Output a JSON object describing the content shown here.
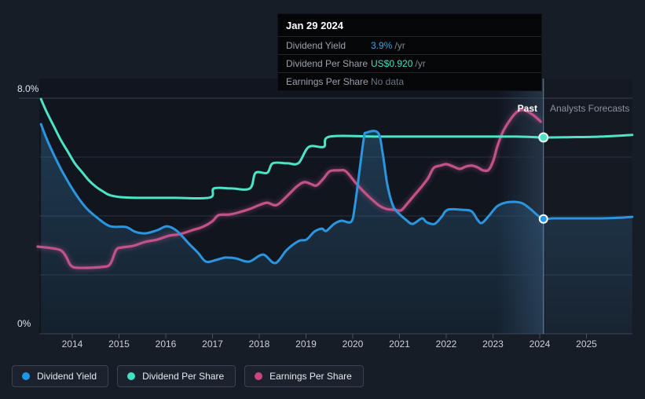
{
  "tooltip": {
    "date": "Jan 29 2024",
    "rows": [
      {
        "label": "Dividend Yield",
        "value": "3.9%",
        "suffix": "/yr",
        "value_color": "#2da8e8"
      },
      {
        "label": "Dividend Per Share",
        "value": "US$0.920",
        "suffix": "/yr",
        "value_color": "#45e0c5"
      },
      {
        "label": "Earnings Per Share",
        "value": "No data",
        "suffix": "",
        "value_color": "#6b7480"
      }
    ]
  },
  "labels": {
    "past": "Past",
    "forecast": "Analysts Forecasts"
  },
  "y_axis": {
    "top": "8.0%",
    "bottom": "0%"
  },
  "x_years": [
    "2014",
    "2015",
    "2016",
    "2017",
    "2018",
    "2019",
    "2020",
    "2021",
    "2022",
    "2023",
    "2024",
    "2025"
  ],
  "legend": [
    {
      "label": "Dividend Yield",
      "color": "#1e96e8"
    },
    {
      "label": "Dividend Per Share",
      "color": "#41e0c0"
    },
    {
      "label": "Earnings Per Share",
      "color": "#c9477e"
    }
  ],
  "colors": {
    "yield_line": "#2b95e0",
    "dps_line": "#4de3c6",
    "eps_line": "#c2528a",
    "grid": "#2a3240",
    "grid_top": "#3a4350",
    "axis": "#3a4250",
    "divider": "#a9c6e4",
    "plot_bg": "#10151e"
  },
  "chart_data": {
    "type": "line",
    "title": "",
    "x_range_years": [
      2013.26,
      2025.98
    ],
    "divider_year": 2024.08,
    "divider_label_left": "Past",
    "divider_label_right": "Analysts Forecasts",
    "y_axis": {
      "min": 0,
      "max": 8,
      "unit": "%",
      "tick_labels": [
        "8.0%",
        "0%"
      ],
      "gridline_step": 2
    },
    "grid": true,
    "legend_position": "bottom",
    "series": [
      {
        "name": "Dividend Yield",
        "unit": "%",
        "axis_top_value": 8,
        "color": "#2b95e0",
        "area_fill": true,
        "marker_at_divider": 3.9,
        "points": [
          [
            2013.33,
            7.12
          ],
          [
            2013.46,
            6.59
          ],
          [
            2013.63,
            6.0
          ],
          [
            2013.8,
            5.47
          ],
          [
            2014.05,
            4.8
          ],
          [
            2014.3,
            4.27
          ],
          [
            2014.55,
            3.92
          ],
          [
            2014.81,
            3.65
          ],
          [
            2015.14,
            3.63
          ],
          [
            2015.34,
            3.47
          ],
          [
            2015.56,
            3.41
          ],
          [
            2015.82,
            3.52
          ],
          [
            2016.03,
            3.65
          ],
          [
            2016.24,
            3.49
          ],
          [
            2016.49,
            3.07
          ],
          [
            2016.69,
            2.75
          ],
          [
            2016.86,
            2.45
          ],
          [
            2017.08,
            2.51
          ],
          [
            2017.28,
            2.59
          ],
          [
            2017.5,
            2.56
          ],
          [
            2017.78,
            2.45
          ],
          [
            2018.08,
            2.69
          ],
          [
            2018.34,
            2.4
          ],
          [
            2018.59,
            2.85
          ],
          [
            2018.84,
            3.15
          ],
          [
            2019.01,
            3.2
          ],
          [
            2019.18,
            3.47
          ],
          [
            2019.34,
            3.57
          ],
          [
            2019.43,
            3.49
          ],
          [
            2019.6,
            3.73
          ],
          [
            2019.76,
            3.84
          ],
          [
            2019.97,
            3.81
          ],
          [
            2020.05,
            4.4
          ],
          [
            2020.15,
            5.6
          ],
          [
            2020.24,
            6.67
          ],
          [
            2020.29,
            6.83
          ],
          [
            2020.54,
            6.83
          ],
          [
            2020.64,
            6.13
          ],
          [
            2020.74,
            5.07
          ],
          [
            2020.86,
            4.35
          ],
          [
            2020.99,
            4.08
          ],
          [
            2021.14,
            3.87
          ],
          [
            2021.28,
            3.73
          ],
          [
            2021.48,
            3.92
          ],
          [
            2021.58,
            3.79
          ],
          [
            2021.75,
            3.73
          ],
          [
            2021.9,
            3.97
          ],
          [
            2022.03,
            4.21
          ],
          [
            2022.34,
            4.21
          ],
          [
            2022.54,
            4.16
          ],
          [
            2022.67,
            3.87
          ],
          [
            2022.76,
            3.76
          ],
          [
            2022.91,
            4.0
          ],
          [
            2023.08,
            4.32
          ],
          [
            2023.26,
            4.45
          ],
          [
            2023.46,
            4.48
          ],
          [
            2023.63,
            4.43
          ],
          [
            2023.8,
            4.24
          ],
          [
            2023.95,
            4.03
          ],
          [
            2024.08,
            3.9
          ],
          [
            2024.3,
            3.92
          ],
          [
            2024.8,
            3.92
          ],
          [
            2025.3,
            3.92
          ],
          [
            2025.7,
            3.94
          ],
          [
            2025.98,
            3.97
          ]
        ]
      },
      {
        "name": "Dividend Per Share",
        "unit": "US$",
        "axis_top_value": 1.104,
        "color": "#4de3c6",
        "area_fill": false,
        "marker_at_divider": 0.92,
        "points": [
          [
            2013.33,
            1.1
          ],
          [
            2013.45,
            1.04
          ],
          [
            2013.6,
            0.975
          ],
          [
            2013.75,
            0.91
          ],
          [
            2013.9,
            0.855
          ],
          [
            2014.05,
            0.8
          ],
          [
            2014.2,
            0.76
          ],
          [
            2014.35,
            0.72
          ],
          [
            2014.5,
            0.69
          ],
          [
            2014.65,
            0.668
          ],
          [
            2014.8,
            0.65
          ],
          [
            2015.06,
            0.64
          ],
          [
            2015.5,
            0.637
          ],
          [
            2016.2,
            0.637
          ],
          [
            2016.94,
            0.638
          ],
          [
            2017.03,
            0.681
          ],
          [
            2017.4,
            0.681
          ],
          [
            2017.8,
            0.681
          ],
          [
            2017.92,
            0.754
          ],
          [
            2018.17,
            0.754
          ],
          [
            2018.29,
            0.799
          ],
          [
            2018.6,
            0.799
          ],
          [
            2018.84,
            0.8
          ],
          [
            2019.06,
            0.876
          ],
          [
            2019.38,
            0.876
          ],
          [
            2019.51,
            0.924
          ],
          [
            2020.5,
            0.924
          ],
          [
            2021.5,
            0.924
          ],
          [
            2022.5,
            0.924
          ],
          [
            2023.5,
            0.924
          ],
          [
            2024.08,
            0.92
          ],
          [
            2024.6,
            0.921
          ],
          [
            2025.3,
            0.924
          ],
          [
            2025.98,
            0.932
          ]
        ]
      },
      {
        "name": "Earnings Per Share",
        "unit": "axis-%",
        "axis_top_value": 8,
        "color": "#c2528a",
        "area_fill": false,
        "ends_before_forecast": true,
        "points": [
          [
            2013.26,
            2.96
          ],
          [
            2013.55,
            2.91
          ],
          [
            2013.76,
            2.83
          ],
          [
            2013.87,
            2.61
          ],
          [
            2013.97,
            2.32
          ],
          [
            2014.13,
            2.24
          ],
          [
            2014.64,
            2.27
          ],
          [
            2014.81,
            2.37
          ],
          [
            2014.94,
            2.85
          ],
          [
            2015.06,
            2.93
          ],
          [
            2015.31,
            2.99
          ],
          [
            2015.56,
            3.12
          ],
          [
            2015.82,
            3.2
          ],
          [
            2016.07,
            3.33
          ],
          [
            2016.32,
            3.39
          ],
          [
            2016.57,
            3.52
          ],
          [
            2016.79,
            3.63
          ],
          [
            2016.99,
            3.81
          ],
          [
            2017.13,
            4.03
          ],
          [
            2017.36,
            4.05
          ],
          [
            2017.58,
            4.13
          ],
          [
            2017.8,
            4.24
          ],
          [
            2018.0,
            4.37
          ],
          [
            2018.17,
            4.45
          ],
          [
            2018.37,
            4.37
          ],
          [
            2018.59,
            4.67
          ],
          [
            2018.81,
            5.01
          ],
          [
            2018.97,
            5.15
          ],
          [
            2019.13,
            5.07
          ],
          [
            2019.23,
            5.04
          ],
          [
            2019.38,
            5.28
          ],
          [
            2019.51,
            5.52
          ],
          [
            2019.71,
            5.55
          ],
          [
            2019.85,
            5.52
          ],
          [
            2020.05,
            5.15
          ],
          [
            2020.22,
            4.85
          ],
          [
            2020.39,
            4.59
          ],
          [
            2020.57,
            4.35
          ],
          [
            2020.72,
            4.24
          ],
          [
            2020.89,
            4.21
          ],
          [
            2021.03,
            4.19
          ],
          [
            2021.14,
            4.37
          ],
          [
            2021.31,
            4.69
          ],
          [
            2021.48,
            5.01
          ],
          [
            2021.61,
            5.28
          ],
          [
            2021.73,
            5.63
          ],
          [
            2021.87,
            5.71
          ],
          [
            2022.0,
            5.76
          ],
          [
            2022.15,
            5.68
          ],
          [
            2022.29,
            5.6
          ],
          [
            2022.42,
            5.68
          ],
          [
            2022.55,
            5.71
          ],
          [
            2022.67,
            5.65
          ],
          [
            2022.79,
            5.55
          ],
          [
            2022.91,
            5.57
          ],
          [
            2023.01,
            5.89
          ],
          [
            2023.09,
            6.35
          ],
          [
            2023.21,
            6.85
          ],
          [
            2023.34,
            7.2
          ],
          [
            2023.48,
            7.49
          ],
          [
            2023.6,
            7.6
          ],
          [
            2023.71,
            7.57
          ],
          [
            2023.85,
            7.44
          ],
          [
            2023.97,
            7.28
          ],
          [
            2024.02,
            7.2
          ]
        ]
      }
    ]
  }
}
